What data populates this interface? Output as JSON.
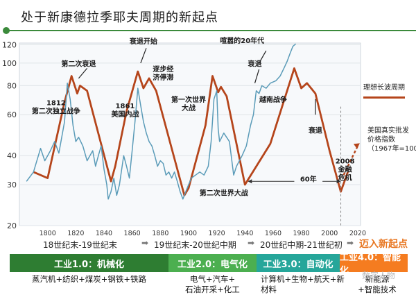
{
  "title": "处于新康德拉季耶夫周期的新起点",
  "chart_data": {
    "type": "line",
    "x_ticks": [
      1800,
      1820,
      1840,
      1860,
      1880,
      1900,
      1920,
      1940,
      1960,
      1980,
      2000,
      2020
    ],
    "y_ticks": [
      20,
      30,
      40,
      60,
      80,
      100,
      120
    ],
    "xlim": [
      1780,
      2022
    ],
    "ylim": [
      20,
      122
    ],
    "yscale": "log",
    "series": [
      {
        "name": "理想长波周期",
        "color": "#b5451b",
        "points": [
          [
            1790,
            34
          ],
          [
            1800,
            32
          ],
          [
            1812,
            68
          ],
          [
            1817,
            88
          ],
          [
            1821,
            74
          ],
          [
            1823,
            80
          ],
          [
            1828,
            76
          ],
          [
            1845,
            31
          ],
          [
            1848,
            36
          ],
          [
            1856,
            62
          ],
          [
            1864,
            92
          ],
          [
            1868,
            78
          ],
          [
            1872,
            86
          ],
          [
            1877,
            76
          ],
          [
            1897,
            27
          ],
          [
            1900,
            29
          ],
          [
            1912,
            54
          ],
          [
            1917,
            88
          ],
          [
            1921,
            75
          ],
          [
            1923,
            79
          ],
          [
            1927,
            72
          ],
          [
            1940,
            30
          ],
          [
            1958,
            45
          ],
          [
            1975,
            95
          ],
          [
            1980,
            78
          ],
          [
            1984,
            82
          ],
          [
            1990,
            74
          ],
          [
            2000,
            42
          ],
          [
            2008,
            28
          ],
          [
            2013,
            34
          ]
        ]
      },
      {
        "name": "美国真实批发价格指数",
        "color": "#5a9bb8",
        "points": [
          [
            1785,
            31
          ],
          [
            1790,
            34
          ],
          [
            1795,
            43
          ],
          [
            1798,
            38
          ],
          [
            1802,
            42
          ],
          [
            1805,
            46
          ],
          [
            1808,
            41
          ],
          [
            1812,
            56
          ],
          [
            1814,
            82
          ],
          [
            1816,
            70
          ],
          [
            1818,
            54
          ],
          [
            1820,
            46
          ],
          [
            1822,
            48
          ],
          [
            1825,
            44
          ],
          [
            1828,
            38
          ],
          [
            1832,
            42
          ],
          [
            1834,
            36
          ],
          [
            1836,
            40
          ],
          [
            1838,
            44
          ],
          [
            1840,
            35
          ],
          [
            1842,
            30
          ],
          [
            1843,
            26
          ],
          [
            1845,
            28
          ],
          [
            1847,
            32
          ],
          [
            1849,
            27
          ],
          [
            1851,
            30
          ],
          [
            1854,
            40
          ],
          [
            1856,
            36
          ],
          [
            1858,
            32
          ],
          [
            1860,
            42
          ],
          [
            1862,
            56
          ],
          [
            1864,
            78
          ],
          [
            1866,
            66
          ],
          [
            1868,
            56
          ],
          [
            1870,
            50
          ],
          [
            1872,
            46
          ],
          [
            1874,
            44
          ],
          [
            1876,
            40
          ],
          [
            1878,
            36
          ],
          [
            1880,
            38
          ],
          [
            1882,
            37
          ],
          [
            1884,
            33
          ],
          [
            1886,
            34
          ],
          [
            1888,
            32
          ],
          [
            1890,
            34
          ],
          [
            1892,
            31
          ],
          [
            1894,
            28
          ],
          [
            1896,
            26
          ],
          [
            1898,
            28
          ],
          [
            1900,
            30
          ],
          [
            1902,
            32
          ],
          [
            1905,
            33
          ],
          [
            1908,
            34
          ],
          [
            1911,
            33
          ],
          [
            1914,
            36
          ],
          [
            1916,
            46
          ],
          [
            1918,
            70
          ],
          [
            1920,
            76
          ],
          [
            1921,
            52
          ],
          [
            1922,
            46
          ],
          [
            1925,
            50
          ],
          [
            1929,
            46
          ],
          [
            1932,
            33
          ],
          [
            1934,
            36
          ],
          [
            1938,
            40
          ],
          [
            1941,
            44
          ],
          [
            1944,
            54
          ],
          [
            1946,
            60
          ],
          [
            1948,
            76
          ],
          [
            1950,
            74
          ],
          [
            1952,
            80
          ],
          [
            1955,
            78
          ],
          [
            1958,
            82
          ],
          [
            1962,
            84
          ],
          [
            1965,
            88
          ],
          [
            1968,
            96
          ],
          [
            1970,
            102
          ],
          [
            1972,
            110
          ],
          [
            1974,
            118
          ],
          [
            1976,
            121
          ]
        ]
      }
    ],
    "annotations": [
      {
        "text": "1812\n第二次独立战争",
        "x": 1806,
        "y": 66
      },
      {
        "text": "第二次衰退",
        "x": 1822,
        "y": 97
      },
      {
        "text": "1861\n美国内战",
        "x": 1855,
        "y": 64
      },
      {
        "text": "衰退开始",
        "x": 1868,
        "y": 121
      },
      {
        "text": "逐步经\n济停滞",
        "x": 1882,
        "y": 92
      },
      {
        "text": "第一次世界\n大战",
        "x": 1900,
        "y": 68
      },
      {
        "text": "喧嚣的20年代",
        "x": 1938,
        "y": 122
      },
      {
        "text": "衰退",
        "x": 1947,
        "y": 97
      },
      {
        "text": "越南战争",
        "x": 1960,
        "y": 68
      },
      {
        "text": "衰退",
        "x": 1990,
        "y": 50
      },
      {
        "text": "第二次世界大战",
        "x": 1925,
        "y": 27
      },
      {
        "text": "60年",
        "x": 1985,
        "y": 31
      },
      {
        "text": "2008\n金融\n危机",
        "x": 2011,
        "y": 37
      }
    ],
    "legend": [
      {
        "text": "理想长波周期",
        "color": "#b5451b"
      },
      {
        "text": "美国真实批发\n价格指数\n（1967年=100）",
        "color": "#5a9bb8"
      }
    ]
  },
  "eras": {
    "era1": "18世纪末-19世纪末",
    "era2": "19世纪末-20世纪中期",
    "era3": "20世纪中期-21世纪初",
    "era4": "迈入新起点"
  },
  "stages": [
    {
      "label": "工业1.0：机械化",
      "desc": "蒸汽机+纺织+煤炭+钢铁+铁路"
    },
    {
      "label": "工业2.0：电气化",
      "desc": "电气+汽车+\n石油开采+化工"
    },
    {
      "label": "工业3.0：自动化",
      "desc": "计算机+生物+航天+新\n材料"
    },
    {
      "label": "工业4.0：智能化",
      "desc": "新能源\n+智能技术"
    }
  ],
  "watermark": "数字人物"
}
